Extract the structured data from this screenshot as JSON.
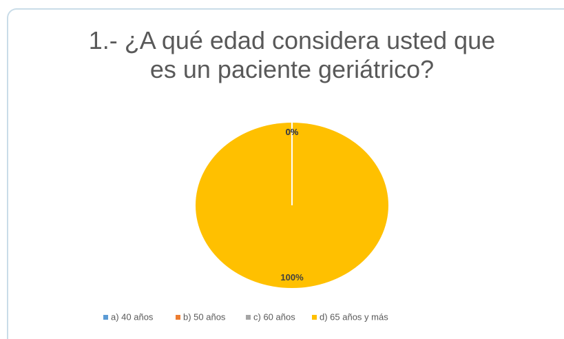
{
  "chart_data": {
    "type": "pie",
    "title": "1.- ¿A qué edad considera usted que es un paciente geriátrico?",
    "categories": [
      "a) 40 años",
      "b) 50 años",
      "c) 60 años",
      "d) 65 años y más"
    ],
    "values": [
      0,
      0,
      0,
      100
    ],
    "value_labels": [
      "0%",
      "0%",
      "0%",
      "100%"
    ],
    "colors": [
      "#5b9bd5",
      "#ed7d31",
      "#a5a5a5",
      "#ffc000"
    ],
    "legend": "bottom"
  }
}
